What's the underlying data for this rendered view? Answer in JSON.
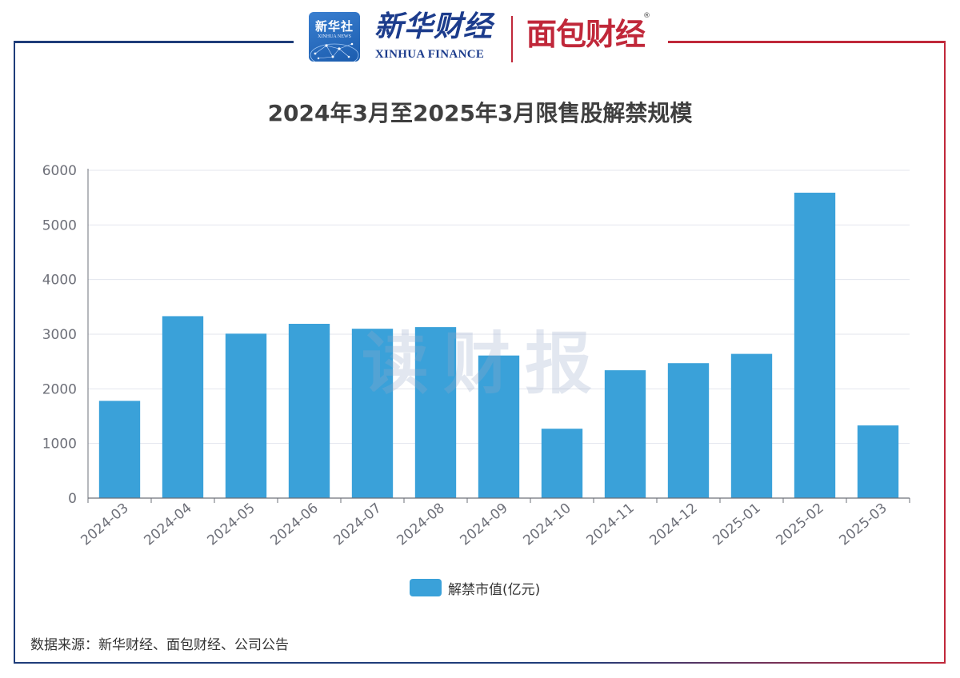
{
  "header": {
    "xinhua_news_logo_cn": "新华社",
    "xinhua_news_logo_en": "XINHUA NEWS",
    "xinhua_finance_logo_cn": "新华财经",
    "xinhua_finance_logo_en": "XINHUA FINANCE",
    "mianbao_logo": "面包财经",
    "registered_mark": "®"
  },
  "watermark": "读财报",
  "source_note": "数据来源：新华财经、面包财经、公司公告",
  "colors": {
    "bar": "#3aa1d9",
    "frame_left": "#1f3d7a",
    "frame_right": "#c0283a",
    "grid": "#e3e6ee",
    "axis": "#6e7079"
  },
  "chart_data": {
    "type": "bar",
    "title": "2024年3月至2025年3月限售股解禁规模",
    "categories": [
      "2024-03",
      "2024-04",
      "2024-05",
      "2024-06",
      "2024-07",
      "2024-08",
      "2024-09",
      "2024-10",
      "2024-11",
      "2024-12",
      "2025-01",
      "2025-02",
      "2025-03"
    ],
    "series": [
      {
        "name": "解禁市值(亿元)",
        "values": [
          1780,
          3330,
          3010,
          3190,
          3100,
          3130,
          2610,
          1270,
          2340,
          2470,
          2640,
          5590,
          1330
        ]
      }
    ],
    "ylim": [
      0,
      6000
    ],
    "yticks": [
      "0",
      "1000",
      "2000",
      "3000",
      "4000",
      "5000",
      "6000"
    ],
    "grid": true,
    "legend": "bottom-center",
    "xlabel": "",
    "ylabel": ""
  }
}
